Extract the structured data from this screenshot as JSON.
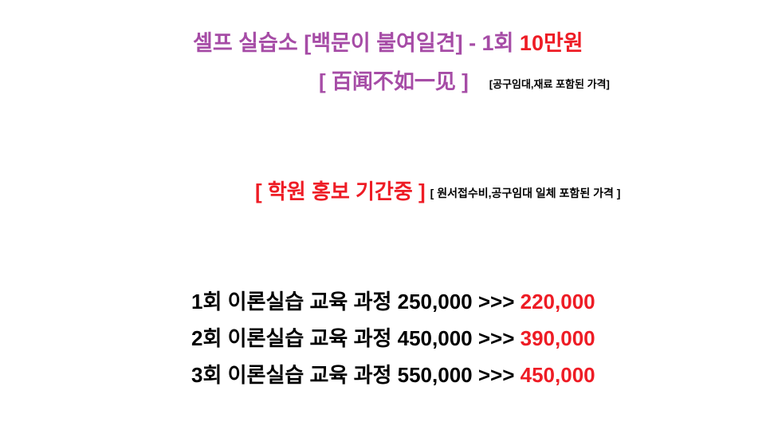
{
  "title": {
    "text": "셀프 실습소 [백문이 불여일견]  -  1회 ",
    "highlight": "10만원"
  },
  "subtitle": {
    "text": "[ 百闻不如一见 ]",
    "note": "[공구임대,재료 포함된 가격]"
  },
  "promo": {
    "text": "[ 학원 홍보 기간중 ]",
    "note": "[ 원서접수비,공구임대 일체 포함된 가격 ]"
  },
  "courses": [
    {
      "label": "1회 이론실습 교육 과정 250,000 >>> ",
      "price": "220,000"
    },
    {
      "label": "2회 이론실습 교육 과정 450,000 >>> ",
      "price": "390,000"
    },
    {
      "label": "3회 이론실습 교육 과정 550,000 >>> ",
      "price": "450,000"
    }
  ],
  "colors": {
    "purple": "#a64ca6",
    "red": "#ee1c25"
  }
}
